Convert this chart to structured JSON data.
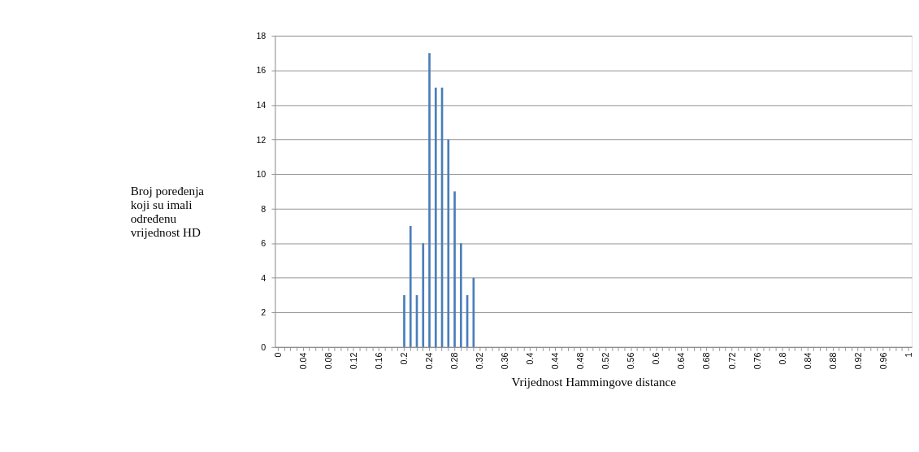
{
  "chart_data": {
    "type": "bar",
    "xlabel": "Vrijednost Hammingove distance",
    "ylabel": "Broj poređenja koji su imali određenu vrijednost HD",
    "categories": [
      "0",
      null,
      null,
      null,
      "0.04",
      null,
      null,
      null,
      "0.08",
      null,
      null,
      null,
      "0.12",
      null,
      null,
      null,
      "0.16",
      null,
      null,
      null,
      "0.2",
      null,
      null,
      null,
      "0.24",
      null,
      null,
      null,
      "0.28",
      null,
      null,
      null,
      "0.32",
      null,
      null,
      null,
      "0.36",
      null,
      null,
      null,
      "0.4",
      null,
      null,
      null,
      "0.44",
      null,
      null,
      null,
      "0.48",
      null,
      null,
      null,
      "0.52",
      null,
      null,
      null,
      "0.56",
      null,
      null,
      null,
      "0.6",
      null,
      null,
      null,
      "0.64",
      null,
      null,
      null,
      "0.68",
      null,
      null,
      null,
      "0.72",
      null,
      null,
      null,
      "0.76",
      null,
      null,
      null,
      "0.8",
      null,
      null,
      null,
      "0.84",
      null,
      null,
      null,
      "0.88",
      null,
      null,
      null,
      "0.92",
      null,
      null,
      null,
      "0.96",
      null,
      null,
      null,
      "1"
    ],
    "values": [
      0,
      0,
      0,
      0,
      0,
      0,
      0,
      0,
      0,
      0,
      0,
      0,
      0,
      0,
      0,
      0,
      0,
      0,
      0,
      0,
      3,
      7,
      3,
      6,
      17,
      15,
      15,
      12,
      9,
      6,
      3,
      4,
      0,
      0,
      0,
      0,
      0,
      0,
      0,
      0,
      0,
      0,
      0,
      0,
      0,
      0,
      0,
      0,
      0,
      0,
      0,
      0,
      0,
      0,
      0,
      0,
      0,
      0,
      0,
      0,
      0,
      0,
      0,
      0,
      0,
      0,
      0,
      0,
      0,
      0,
      0,
      0,
      0,
      0,
      0,
      0,
      0,
      0,
      0,
      0,
      0,
      0,
      0,
      0,
      0,
      0,
      0,
      0,
      0,
      0,
      0,
      0,
      0,
      0,
      0,
      0,
      0,
      0,
      0,
      0,
      0
    ],
    "color": "#4a7ebb",
    "ylim": [
      0,
      18
    ],
    "yticks": [
      0,
      2,
      4,
      6,
      8,
      10,
      12,
      14,
      16,
      18
    ],
    "grid": "y"
  }
}
